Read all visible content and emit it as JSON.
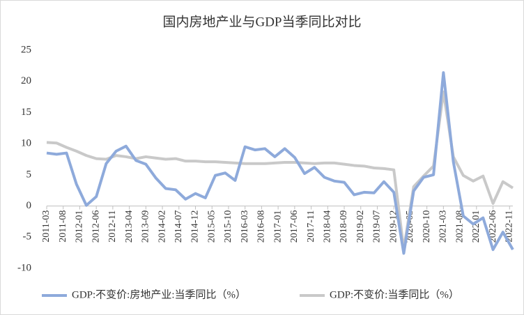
{
  "chart_data": {
    "type": "line",
    "title": "国内房地产业与GDP当季同比对比",
    "x": [
      "2011-03",
      "2011-06",
      "2011-09",
      "2011-12",
      "2012-03",
      "2012-06",
      "2012-09",
      "2012-12",
      "2013-03",
      "2013-06",
      "2013-09",
      "2013-12",
      "2014-03",
      "2014-06",
      "2014-09",
      "2014-12",
      "2015-03",
      "2015-06",
      "2015-09",
      "2015-12",
      "2016-03",
      "2016-06",
      "2016-09",
      "2016-12",
      "2017-03",
      "2017-06",
      "2017-09",
      "2017-12",
      "2018-03",
      "2018-06",
      "2018-09",
      "2018-12",
      "2019-03",
      "2019-06",
      "2019-09",
      "2019-12",
      "2020-03",
      "2020-06",
      "2020-09",
      "2020-12",
      "2021-03",
      "2021-06",
      "2021-09",
      "2021-12",
      "2022-03",
      "2022-06",
      "2022-09",
      "2022-12"
    ],
    "series": [
      {
        "name": "GDP:不变价:房地产业:当季同比（%）",
        "color": "#8eaadb",
        "values": [
          8.5,
          8.3,
          8.5,
          3.5,
          0.1,
          1.5,
          6.8,
          8.8,
          9.6,
          7.3,
          6.7,
          4.5,
          2.8,
          2.6,
          1.1,
          2.0,
          1.3,
          4.9,
          5.3,
          4.1,
          9.5,
          9.0,
          9.2,
          7.9,
          9.2,
          7.8,
          5.2,
          6.2,
          4.6,
          4.0,
          3.8,
          1.8,
          2.2,
          2.1,
          3.9,
          2.2,
          -7.6,
          2.4,
          4.6,
          5.0,
          21.4,
          7.1,
          -1.6,
          -2.9,
          -1.9,
          -7.0,
          -4.2,
          -7.0
        ]
      },
      {
        "name": "GDP:不变价:当季同比（%）",
        "color": "#c9c9c9",
        "values": [
          10.2,
          10.1,
          9.4,
          8.8,
          8.1,
          7.6,
          7.5,
          8.1,
          7.9,
          7.6,
          7.9,
          7.7,
          7.5,
          7.6,
          7.2,
          7.2,
          7.1,
          7.1,
          7.0,
          6.9,
          6.8,
          6.8,
          6.8,
          6.9,
          7.0,
          7.0,
          6.9,
          6.8,
          6.9,
          6.9,
          6.7,
          6.5,
          6.4,
          6.1,
          6.0,
          5.8,
          -6.9,
          3.1,
          4.8,
          6.4,
          18.3,
          7.9,
          4.9,
          4.0,
          4.8,
          0.4,
          3.9,
          2.9
        ]
      }
    ],
    "xlim": [
      "2011-03",
      "2022-12"
    ],
    "xticks": [
      "2011-03",
      "2011-08",
      "2012-01",
      "2012-06",
      "2012-11",
      "2013-04",
      "2013-09",
      "2014-02",
      "2014-07",
      "2014-12",
      "2015-05",
      "2015-10",
      "2016-03",
      "2016-08",
      "2017-01",
      "2017-06",
      "2017-11",
      "2018-04",
      "2018-09",
      "2019-02",
      "2019-07",
      "2019-12",
      "2020-05",
      "2020-10",
      "2021-03",
      "2021-08",
      "2022-01",
      "2022-06",
      "2022-11"
    ],
    "ylim": [
      -10,
      25
    ],
    "yticks": [
      -10,
      -5,
      0,
      5,
      10,
      15,
      20,
      25
    ],
    "legend": "bottom"
  }
}
